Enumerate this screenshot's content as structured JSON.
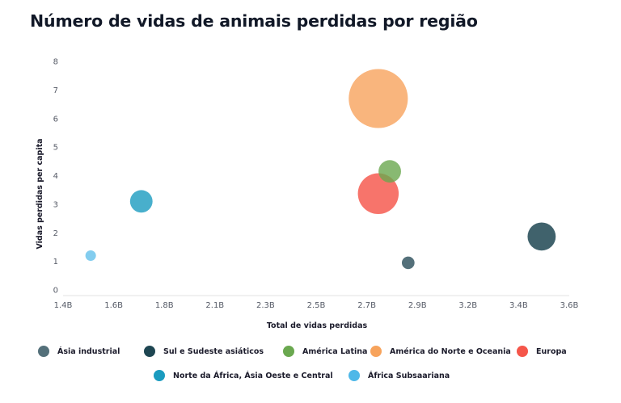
{
  "chart_data": {
    "type": "scatter",
    "title": "Número de vidas de animais perdidas por região",
    "xlabel": "Total de vidas perdidas",
    "ylabel": "Vidas perdidas per capita",
    "xlim": [
      1.4,
      3.6
    ],
    "ylim": [
      0,
      8
    ],
    "x_ticks": [
      1.4,
      1.6,
      1.8,
      2.1,
      2.3,
      2.5,
      2.7,
      2.9,
      3.2,
      3.4,
      3.6
    ],
    "x_tick_labels": [
      "1.4B",
      "1.6B",
      "1.8B",
      "2.1B",
      "2.3B",
      "2.5B",
      "2.7B",
      "2.9B",
      "3.2B",
      "3.4B",
      "3.6B"
    ],
    "y_ticks": [
      0,
      1,
      2,
      3,
      4,
      5,
      6,
      7,
      8
    ],
    "y_tick_labels": [
      "0",
      "1",
      "2",
      "3",
      "4",
      "5",
      "6",
      "7",
      "8"
    ],
    "grid": false,
    "legend_position": "bottom",
    "series": [
      {
        "name": "Ásia industrial",
        "color": "#54707a",
        "opacity": 1.0,
        "points": [
          {
            "x": 2.9,
            "y": 0.95,
            "size": 0.9
          }
        ]
      },
      {
        "name": "Sul e Sudeste asiáticos",
        "color": "#1e4652",
        "opacity": 0.85,
        "points": [
          {
            "x": 3.48,
            "y": 1.87,
            "size": 2.0
          }
        ]
      },
      {
        "name": "América Latina",
        "color": "#6aa84f",
        "opacity": 0.8,
        "points": [
          {
            "x": 2.82,
            "y": 4.15,
            "size": 1.6
          }
        ]
      },
      {
        "name": "América do Norte e Oceania",
        "color": "#f7a35c",
        "opacity": 0.8,
        "points": [
          {
            "x": 2.77,
            "y": 6.7,
            "size": 4.2
          }
        ]
      },
      {
        "name": "Europa",
        "color": "#f5564a",
        "opacity": 0.82,
        "points": [
          {
            "x": 2.77,
            "y": 3.37,
            "size": 2.9
          }
        ]
      },
      {
        "name": "Norte da África, Ásia Oeste e Central",
        "color": "#1a9bbf",
        "opacity": 0.8,
        "points": [
          {
            "x": 1.74,
            "y": 3.1,
            "size": 1.6
          }
        ]
      },
      {
        "name": "África Subsaariana",
        "color": "#4fb8e8",
        "opacity": 0.7,
        "points": [
          {
            "x": 1.52,
            "y": 1.2,
            "size": 0.75
          }
        ]
      }
    ]
  }
}
